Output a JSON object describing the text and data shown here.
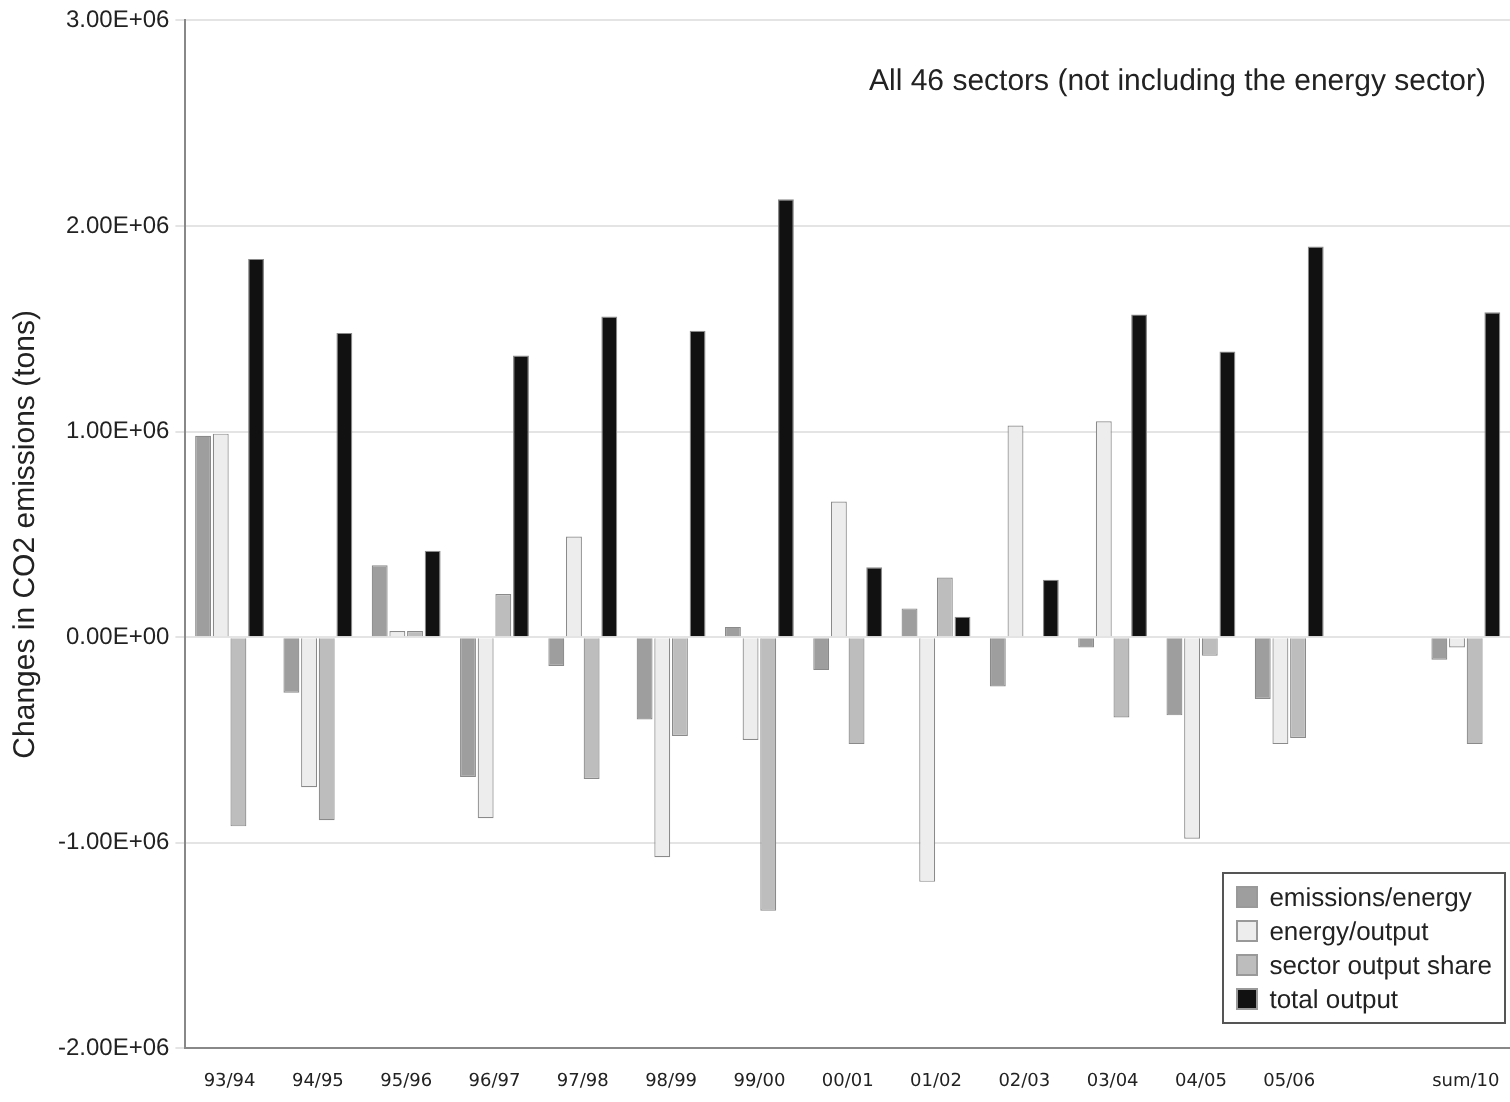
{
  "chart_data": {
    "type": "bar",
    "title": "All 46 sectors (not including the energy sector)",
    "ylabel": "Changes in CO2 emissions (tons)",
    "categories": [
      "93/94",
      "94/95",
      "95/96",
      "96/97",
      "97/98",
      "98/99",
      "99/00",
      "00/01",
      "01/02",
      "02/03",
      "03/04",
      "04/05",
      "05/06",
      null,
      "sum/10"
    ],
    "series": [
      {
        "name": "emissions/energy",
        "color": "#9e9e9e",
        "values": [
          980000,
          -270000,
          350000,
          -680000,
          -140000,
          -400000,
          50000,
          -160000,
          140000,
          -240000,
          -50000,
          -380000,
          -300000,
          null,
          -110000
        ]
      },
      {
        "name": "energy/output",
        "color": "#ededed",
        "values": [
          990000,
          -730000,
          30000,
          -880000,
          490000,
          -1070000,
          -500000,
          660000,
          -1190000,
          1030000,
          1050000,
          -980000,
          -520000,
          null,
          -50000
        ]
      },
      {
        "name": "sector output share",
        "color": "#bdbdbd",
        "values": [
          -920000,
          -890000,
          30000,
          210000,
          -690000,
          -480000,
          -1330000,
          -520000,
          290000,
          0,
          -390000,
          -90000,
          -490000,
          null,
          -520000
        ]
      },
      {
        "name": "total output",
        "color": "#111111",
        "values": [
          1840000,
          1480000,
          420000,
          1370000,
          1560000,
          1490000,
          2130000,
          340000,
          100000,
          280000,
          1570000,
          1390000,
          1900000,
          null,
          1580000
        ]
      }
    ],
    "ylim": [
      -2000000,
      3000000
    ],
    "yticks": [
      {
        "value": -2000000,
        "label": "-2.00E+06"
      },
      {
        "value": -1000000,
        "label": "-1.00E+06"
      },
      {
        "value": 0,
        "label": "0.00E+00"
      },
      {
        "value": 1000000,
        "label": "1.00E+06"
      },
      {
        "value": 2000000,
        "label": "2.00E+06"
      },
      {
        "value": 3000000,
        "label": "3.00E+06"
      }
    ],
    "grid": "y",
    "legend": "bottom right"
  }
}
